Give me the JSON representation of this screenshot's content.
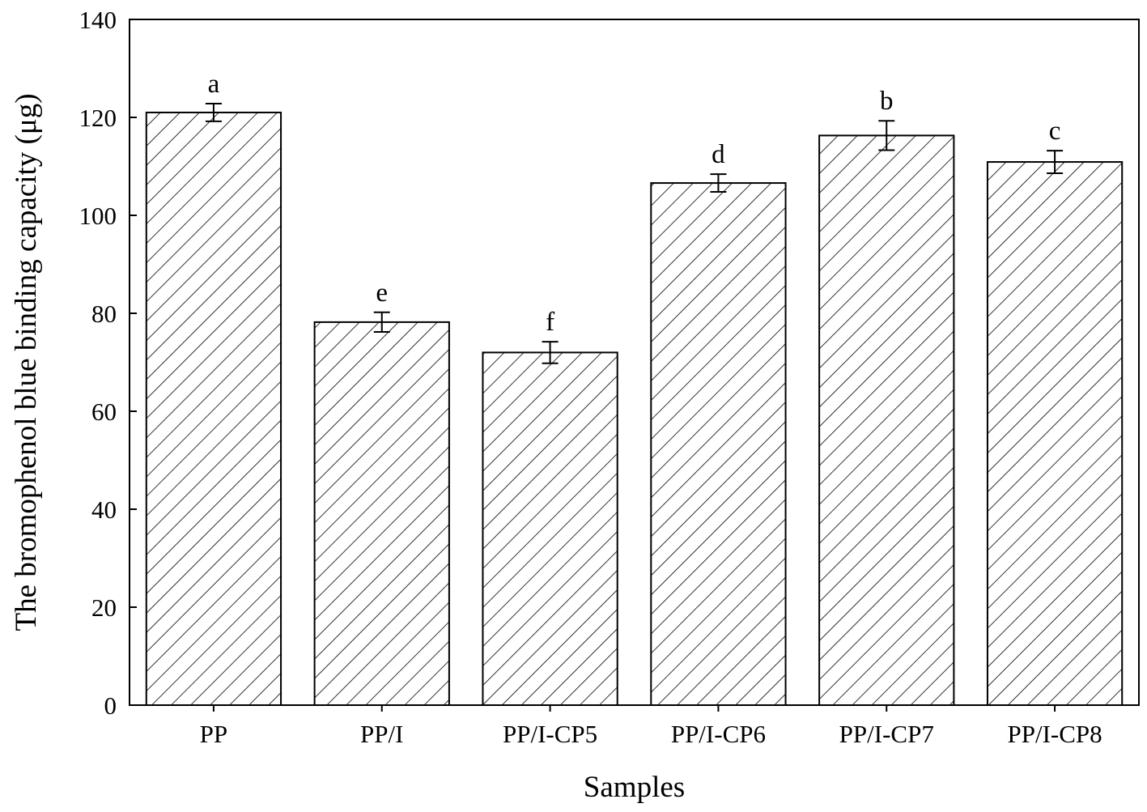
{
  "chart_data": {
    "type": "bar",
    "title": "",
    "xlabel": "Samples",
    "ylabel": "The bromophenol blue binding capacity (μg)",
    "ylim": [
      0,
      140
    ],
    "yticks": [
      0,
      20,
      40,
      60,
      80,
      100,
      120,
      140
    ],
    "grid": false,
    "legend": "none",
    "fill_pattern": "diagonal-hatch",
    "colors": {
      "bar_fill": "#ffffff",
      "bar_stroke": "#000000",
      "hatch": "#000000"
    },
    "categories": [
      "PP",
      "PP/I",
      "PP/I-CP5",
      "PP/I-CP6",
      "PP/I-CP7",
      "PP/I-CP8"
    ],
    "values": [
      121.0,
      78.2,
      72.0,
      106.6,
      116.3,
      110.9
    ],
    "errors": [
      1.8,
      2.0,
      2.2,
      1.8,
      3.0,
      2.3
    ],
    "significance_labels": [
      "a",
      "e",
      "f",
      "d",
      "b",
      "c"
    ]
  }
}
